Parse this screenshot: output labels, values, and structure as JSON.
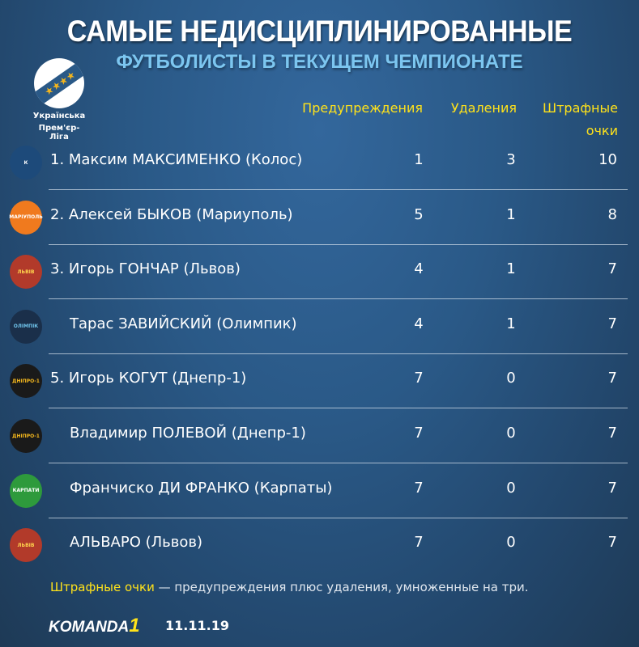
{
  "title": "САМЫЕ НЕДИСЦИПЛИНИРОВАННЫЕ",
  "subtitle": "ФУТБОЛИСТЫ В ТЕКУЩЕМ ЧЕМПИОНАТЕ",
  "league_logo": {
    "line1": "Українська",
    "line2": "Прем'єр-Ліга",
    "icon": "league-ball-stars-icon"
  },
  "columns": [
    "Предупреждения",
    "Удаления",
    "Штрафные",
    "очки"
  ],
  "rows": [
    {
      "name": "1. Максим МАКСИМЕНКО (Колос)",
      "warnings": "1",
      "red": "3",
      "points": "10",
      "crest": "К",
      "color": "#1d4a7a",
      "text": "#fff"
    },
    {
      "name": "2. Алексей БЫКОВ (Мариуполь)",
      "warnings": "5",
      "red": "1",
      "points": "8",
      "crest": "МАРІУПОЛЬ",
      "color": "#f07a1e",
      "text": "#fff"
    },
    {
      "name": "3. Игорь ГОНЧАР (Львов)",
      "warnings": "4",
      "red": "1",
      "points": "7",
      "crest": "ЛЬВІВ",
      "color": "#b23a2a",
      "text": "#ffd34d"
    },
    {
      "name": "Тарас ЗАВИЙСКИЙ (Олимпик)",
      "warnings": "4",
      "red": "1",
      "points": "7",
      "crest": "ОЛІМПІК",
      "color": "#1a2f4a",
      "text": "#6fc3ea"
    },
    {
      "name": "5. Игорь КОГУТ (Днепр-1)",
      "warnings": "7",
      "red": "0",
      "points": "7",
      "crest": "ДНІПРО-1",
      "color": "#1a1a1a",
      "text": "#f5b81d"
    },
    {
      "name": "Владимир ПОЛЕВОЙ (Днепр-1)",
      "warnings": "7",
      "red": "0",
      "points": "7",
      "crest": "ДНІПРО-1",
      "color": "#1a1a1a",
      "text": "#f5b81d"
    },
    {
      "name": "Франчиско ДИ ФРАНКО (Карпаты)",
      "warnings": "7",
      "red": "0",
      "points": "7",
      "crest": "КАРПАТИ",
      "color": "#2e9a3c",
      "text": "#fff"
    },
    {
      "name": "АЛЬВАРО (Львов)",
      "warnings": "7",
      "red": "0",
      "points": "7",
      "crest": "ЛЬВІВ",
      "color": "#b23a2a",
      "text": "#ffd34d"
    }
  ],
  "note": {
    "highlight": "Штрафные очки",
    "text": " — предупреждения плюс удаления, умноженные на три."
  },
  "footer": {
    "brand": "KOMANDA",
    "brand_n": "1",
    "date": "11.11.19"
  },
  "colors": {
    "accent": "#ffe21a",
    "subtitle": "#7cc6f0"
  }
}
